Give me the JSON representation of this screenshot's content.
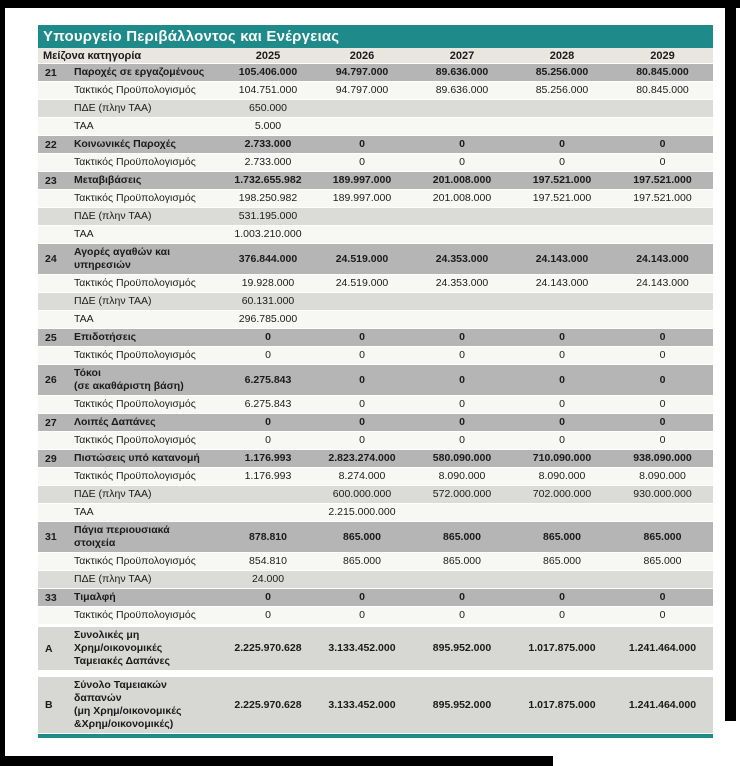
{
  "title": "Υπουργείο Περιβάλλοντος και Ενέργειας",
  "colors": {
    "teal": "#1e8a8a",
    "header_bg": "#e9e6e0",
    "major_row_bg": "#b5b5b5",
    "gray_row_bg": "#dbdbd8",
    "white_row_bg": "#f7f7f4",
    "total_row_bg": "#d7d7d4",
    "frame": "#000000"
  },
  "table": {
    "header": {
      "category": "Μείζονα κατηγορία",
      "years": [
        "2025",
        "2026",
        "2027",
        "2028",
        "2029"
      ]
    },
    "rows": [
      {
        "code": "21",
        "label": "Παροχές σε εργαζομένους",
        "type": "major",
        "values": [
          "105.406.000",
          "94.797.000",
          "89.636.000",
          "85.256.000",
          "80.845.000"
        ]
      },
      {
        "code": "",
        "label": "Τακτικός Προϋπολογισμός",
        "type": "white",
        "values": [
          "104.751.000",
          "94.797.000",
          "89.636.000",
          "85.256.000",
          "80.845.000"
        ]
      },
      {
        "code": "",
        "label": "ΠΔΕ (πλην ΤΑΑ)",
        "type": "gray",
        "values": [
          "650.000",
          "",
          "",
          "",
          ""
        ]
      },
      {
        "code": "",
        "label": "ΤΑΑ",
        "type": "white",
        "values": [
          "5.000",
          "",
          "",
          "",
          ""
        ]
      },
      {
        "code": "22",
        "label": "Κοινωνικές Παροχές",
        "type": "major",
        "values": [
          "2.733.000",
          "0",
          "0",
          "0",
          "0"
        ]
      },
      {
        "code": "",
        "label": "Τακτικός Προϋπολογισμός",
        "type": "white",
        "values": [
          "2.733.000",
          "0",
          "0",
          "0",
          "0"
        ]
      },
      {
        "code": "23",
        "label": "Μεταβιβάσεις",
        "type": "major",
        "values": [
          "1.732.655.982",
          "189.997.000",
          "201.008.000",
          "197.521.000",
          "197.521.000"
        ]
      },
      {
        "code": "",
        "label": "Τακτικός Προϋπολογισμός",
        "type": "white",
        "values": [
          "198.250.982",
          "189.997.000",
          "201.008.000",
          "197.521.000",
          "197.521.000"
        ]
      },
      {
        "code": "",
        "label": "ΠΔΕ (πλην ΤΑΑ)",
        "type": "gray",
        "values": [
          "531.195.000",
          "",
          "",
          "",
          ""
        ]
      },
      {
        "code": "",
        "label": "ΤΑΑ",
        "type": "white",
        "values": [
          "1.003.210.000",
          "",
          "",
          "",
          ""
        ]
      },
      {
        "code": "24",
        "label": "Αγορές αγαθών και\nυπηρεσιών",
        "type": "major",
        "values": [
          "376.844.000",
          "24.519.000",
          "24.353.000",
          "24.143.000",
          "24.143.000"
        ]
      },
      {
        "code": "",
        "label": "Τακτικός Προϋπολογισμός",
        "type": "white",
        "values": [
          "19.928.000",
          "24.519.000",
          "24.353.000",
          "24.143.000",
          "24.143.000"
        ]
      },
      {
        "code": "",
        "label": "ΠΔΕ (πλην ΤΑΑ)",
        "type": "gray",
        "values": [
          "60.131.000",
          "",
          "",
          "",
          ""
        ]
      },
      {
        "code": "",
        "label": "ΤΑΑ",
        "type": "white",
        "values": [
          "296.785.000",
          "",
          "",
          "",
          ""
        ]
      },
      {
        "code": "25",
        "label": "Επιδοτήσεις",
        "type": "major",
        "values": [
          "0",
          "0",
          "0",
          "0",
          "0"
        ]
      },
      {
        "code": "",
        "label": "Τακτικός Προϋπολογισμός",
        "type": "white",
        "values": [
          "0",
          "0",
          "0",
          "0",
          "0"
        ]
      },
      {
        "code": "26",
        "label": "Τόκοι\n(σε ακαθάριστη βάση)",
        "type": "major",
        "values": [
          "6.275.843",
          "0",
          "0",
          "0",
          "0"
        ]
      },
      {
        "code": "",
        "label": "Τακτικός Προϋπολογισμός",
        "type": "white",
        "values": [
          "6.275.843",
          "0",
          "0",
          "0",
          "0"
        ]
      },
      {
        "code": "27",
        "label": "Λοιπές Δαπάνες",
        "type": "major",
        "values": [
          "0",
          "0",
          "0",
          "0",
          "0"
        ]
      },
      {
        "code": "",
        "label": "Τακτικός Προϋπολογισμός",
        "type": "white",
        "values": [
          "0",
          "0",
          "0",
          "0",
          "0"
        ]
      },
      {
        "code": "29",
        "label": "Πιστώσεις υπό κατανομή",
        "type": "major",
        "values": [
          "1.176.993",
          "2.823.274.000",
          "580.090.000",
          "710.090.000",
          "938.090.000"
        ]
      },
      {
        "code": "",
        "label": "Τακτικός Προϋπολογισμός",
        "type": "white",
        "values": [
          "1.176.993",
          "8.274.000",
          "8.090.000",
          "8.090.000",
          "8.090.000"
        ]
      },
      {
        "code": "",
        "label": "ΠΔΕ (πλην ΤΑΑ)",
        "type": "gray",
        "values": [
          "",
          "600.000.000",
          "572.000.000",
          "702.000.000",
          "930.000.000"
        ]
      },
      {
        "code": "",
        "label": "ΤΑΑ",
        "type": "white",
        "values": [
          "",
          "2.215.000.000",
          "",
          "",
          ""
        ]
      },
      {
        "code": "31",
        "label": "Πάγια περιουσιακά\nστοιχεία",
        "type": "major",
        "values": [
          "878.810",
          "865.000",
          "865.000",
          "865.000",
          "865.000"
        ]
      },
      {
        "code": "",
        "label": "Τακτικός Προϋπολογισμός",
        "type": "white",
        "values": [
          "854.810",
          "865.000",
          "865.000",
          "865.000",
          "865.000"
        ]
      },
      {
        "code": "",
        "label": "ΠΔΕ (πλην ΤΑΑ)",
        "type": "gray",
        "values": [
          "24.000",
          "",
          "",
          "",
          ""
        ]
      },
      {
        "code": "33",
        "label": "Τιμαλφή",
        "type": "major",
        "values": [
          "0",
          "0",
          "0",
          "0",
          "0"
        ]
      },
      {
        "code": "",
        "label": "Τακτικός Προϋπολογισμός",
        "type": "white",
        "values": [
          "0",
          "0",
          "0",
          "0",
          "0"
        ]
      },
      {
        "code": "Α",
        "label": "Συνολικές μη\nΧρημ/οικονομικές\nΤαμειακές Δαπάνες",
        "type": "total",
        "values": [
          "2.225.970.628",
          "3.133.452.000",
          "895.952.000",
          "1.017.875.000",
          "1.241.464.000"
        ]
      },
      {
        "code": "Β",
        "label": "Σύνολο Ταμειακών\nδαπανών\n(μη Χρημ/οικονομικές\n&Χρημ/οικονομικές)",
        "type": "total",
        "values": [
          "2.225.970.628",
          "3.133.452.000",
          "895.952.000",
          "1.017.875.000",
          "1.241.464.000"
        ]
      }
    ]
  }
}
